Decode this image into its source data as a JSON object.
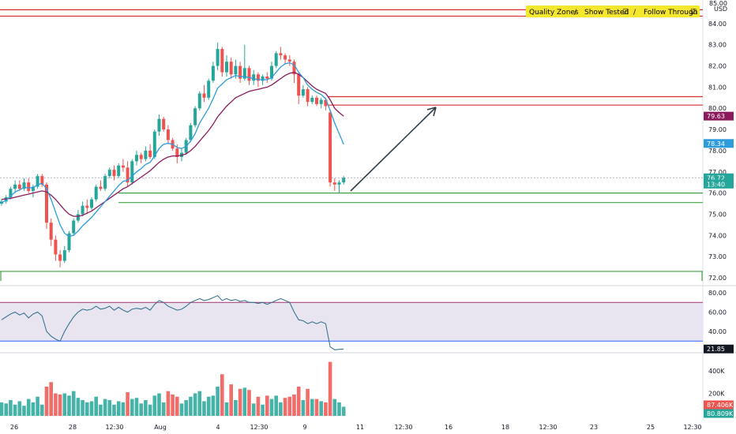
{
  "legend": {
    "quality_zones": "Quality Zones",
    "sep1": "/",
    "show_tested": "Show Tested",
    "sep2": "/",
    "follow_through": "Follow Through",
    "checkmark": "☑",
    "bg_color": "#f5e62e"
  },
  "colors": {
    "up": "#26a69a",
    "down": "#ef5350",
    "ma_fast": "#2e9bdc",
    "ma_slow": "#8b1a5c",
    "resistance": "#d32f2f",
    "support": "#43a047",
    "rsi_line": "#2a6b8a",
    "rsi_band_fill": "#e8e4f0",
    "rsi_upper": "#a0306e",
    "rsi_lower": "#2962ff",
    "arrow": "#2f3f4a"
  },
  "price_axis": {
    "unit": "USD",
    "top_label": "85.00",
    "labels": [
      "84.00",
      "83.00",
      "82.00",
      "81.00",
      "80.00",
      "79.00",
      "78.00",
      "77.00",
      "76.00",
      "75.00",
      "74.00",
      "73.00",
      "72.00"
    ],
    "tags": [
      {
        "text": "79.63",
        "color": "#8b1a5c",
        "value": 79.63
      },
      {
        "text": "78.34",
        "color": "#2e9bdc",
        "value": 78.34
      },
      {
        "text": "76.72",
        "color": "#26a69a",
        "value": 76.72
      },
      {
        "text": "13:40",
        "color": "#26a69a",
        "value": 76.42
      }
    ]
  },
  "rsi_axis": {
    "labels": [
      "80.00",
      "60.00",
      "40.00"
    ],
    "tag": {
      "text": "21.85",
      "color": "#131722",
      "value": 21.85
    }
  },
  "volume_axis": {
    "labels": [
      "400K",
      "200K"
    ],
    "tags": [
      {
        "text": "87.406K",
        "color": "#ef5350",
        "value": 87406
      },
      {
        "text": "80.809K",
        "color": "#26a69a",
        "value": 80809
      }
    ]
  },
  "time_axis": {
    "labels": [
      "26",
      "28",
      "12:30",
      "Aug",
      "4",
      "12:30",
      "9",
      "11",
      "12:30",
      "16",
      "18",
      "12:30",
      "23",
      "25",
      "12:30"
    ]
  },
  "chart_data": {
    "type": "candlestick",
    "price_range": [
      72,
      85
    ],
    "rsi_range": [
      0,
      100
    ],
    "volume_range": [
      0,
      600000
    ],
    "levels": {
      "resistance": [
        84.65,
        84.35,
        80.55,
        80.15
      ],
      "support": [
        76.0,
        75.55,
        72.3
      ],
      "rsi_upper": 70,
      "rsi_lower": 30
    },
    "candles": [
      [
        75.5,
        75.7,
        75.4,
        75.6
      ],
      [
        75.6,
        75.9,
        75.5,
        75.8
      ],
      [
        75.8,
        76.3,
        75.7,
        76.2
      ],
      [
        76.2,
        76.6,
        76.0,
        76.4
      ],
      [
        76.4,
        76.6,
        76.1,
        76.2
      ],
      [
        76.2,
        76.7,
        76.1,
        76.5
      ],
      [
        76.5,
        76.7,
        76.0,
        76.1
      ],
      [
        76.1,
        76.4,
        75.8,
        76.3
      ],
      [
        76.3,
        76.9,
        76.2,
        76.8
      ],
      [
        76.8,
        76.9,
        76.3,
        76.4
      ],
      [
        76.4,
        76.5,
        74.3,
        74.6
      ],
      [
        74.6,
        74.8,
        73.5,
        73.8
      ],
      [
        73.8,
        74.0,
        72.8,
        73.1
      ],
      [
        73.1,
        73.3,
        72.5,
        72.8
      ],
      [
        72.8,
        73.5,
        72.7,
        73.3
      ],
      [
        73.3,
        74.2,
        73.2,
        74.1
      ],
      [
        74.1,
        74.8,
        74.0,
        74.7
      ],
      [
        74.7,
        75.2,
        74.6,
        75.0
      ],
      [
        75.0,
        75.6,
        74.9,
        75.4
      ],
      [
        75.4,
        75.7,
        75.0,
        75.3
      ],
      [
        75.3,
        75.8,
        75.2,
        75.7
      ],
      [
        75.7,
        76.4,
        75.6,
        76.3
      ],
      [
        76.3,
        76.6,
        76.1,
        76.2
      ],
      [
        76.2,
        76.9,
        76.1,
        76.8
      ],
      [
        76.8,
        77.2,
        76.7,
        77.1
      ],
      [
        77.1,
        77.3,
        76.6,
        76.8
      ],
      [
        76.8,
        77.4,
        76.7,
        77.3
      ],
      [
        77.3,
        77.6,
        77.0,
        77.2
      ],
      [
        77.2,
        77.5,
        76.3,
        76.5
      ],
      [
        76.5,
        77.6,
        76.4,
        77.5
      ],
      [
        77.5,
        78.0,
        77.3,
        77.8
      ],
      [
        77.8,
        77.9,
        77.4,
        77.6
      ],
      [
        77.6,
        78.2,
        77.5,
        78.0
      ],
      [
        78.0,
        78.3,
        77.6,
        77.7
      ],
      [
        77.7,
        79.0,
        77.6,
        78.9
      ],
      [
        78.9,
        79.7,
        78.7,
        79.5
      ],
      [
        79.5,
        79.6,
        78.9,
        79.0
      ],
      [
        79.0,
        79.2,
        78.3,
        78.5
      ],
      [
        78.5,
        78.6,
        78.0,
        78.1
      ],
      [
        78.1,
        78.3,
        77.4,
        77.7
      ],
      [
        77.7,
        78.1,
        77.5,
        77.9
      ],
      [
        77.9,
        78.6,
        77.8,
        78.5
      ],
      [
        78.5,
        79.3,
        78.4,
        79.2
      ],
      [
        79.2,
        80.1,
        79.1,
        80.0
      ],
      [
        80.0,
        80.8,
        79.9,
        80.7
      ],
      [
        80.7,
        81.1,
        80.3,
        80.5
      ],
      [
        80.5,
        81.4,
        80.4,
        81.3
      ],
      [
        81.3,
        82.2,
        81.2,
        82.0
      ],
      [
        82.0,
        83.1,
        81.8,
        82.8
      ],
      [
        82.8,
        82.9,
        81.5,
        81.7
      ],
      [
        81.7,
        82.5,
        81.5,
        82.2
      ],
      [
        82.2,
        82.4,
        81.4,
        81.6
      ],
      [
        81.6,
        82.3,
        81.4,
        82.0
      ],
      [
        82.0,
        82.2,
        81.2,
        81.4
      ],
      [
        81.4,
        83.0,
        81.3,
        81.9
      ],
      [
        81.9,
        82.0,
        81.1,
        81.3
      ],
      [
        81.3,
        81.8,
        81.1,
        81.6
      ],
      [
        81.6,
        81.7,
        81.0,
        81.3
      ],
      [
        81.3,
        81.6,
        81.1,
        81.5
      ],
      [
        81.5,
        81.7,
        81.2,
        81.4
      ],
      [
        81.4,
        82.2,
        81.3,
        82.0
      ],
      [
        82.0,
        82.7,
        81.9,
        82.6
      ],
      [
        82.6,
        82.9,
        82.3,
        82.5
      ],
      [
        82.5,
        82.6,
        82.1,
        82.3
      ],
      [
        82.3,
        82.5,
        82.0,
        82.2
      ],
      [
        82.2,
        82.3,
        81.2,
        81.6
      ],
      [
        81.6,
        81.7,
        80.2,
        80.6
      ],
      [
        80.6,
        81.1,
        80.5,
        80.9
      ],
      [
        80.9,
        81.0,
        80.1,
        80.3
      ],
      [
        80.3,
        80.6,
        80.2,
        80.5
      ],
      [
        80.5,
        80.6,
        80.1,
        80.2
      ],
      [
        80.2,
        80.5,
        80.0,
        80.4
      ],
      [
        80.4,
        80.5,
        79.9,
        80.1
      ],
      [
        79.8,
        79.9,
        76.3,
        76.5
      ],
      [
        76.5,
        76.7,
        76.1,
        76.4
      ],
      [
        76.4,
        76.6,
        76.0,
        76.5
      ],
      [
        76.5,
        76.8,
        76.4,
        76.72
      ]
    ],
    "ma_fast": [
      75.55,
      75.65,
      75.85,
      76.05,
      76.15,
      76.25,
      76.25,
      76.25,
      76.4,
      76.45,
      76.2,
      75.7,
      75.1,
      74.5,
      74.1,
      73.95,
      74.0,
      74.2,
      74.45,
      74.65,
      74.85,
      75.1,
      75.35,
      75.6,
      75.85,
      76.1,
      76.35,
      76.55,
      76.6,
      76.8,
      77.0,
      77.15,
      77.35,
      77.45,
      77.75,
      78.1,
      78.3,
      78.35,
      78.3,
      78.15,
      78.1,
      78.2,
      78.45,
      78.8,
      79.3,
      79.65,
      80.0,
      80.45,
      80.95,
      81.15,
      81.35,
      81.45,
      81.55,
      81.5,
      81.5,
      81.45,
      81.4,
      81.35,
      81.35,
      81.35,
      81.45,
      81.7,
      81.95,
      82.1,
      82.15,
      82.05,
      81.7,
      81.45,
      81.1,
      80.9,
      80.75,
      80.65,
      80.45,
      79.9,
      79.3,
      78.8,
      78.3
    ],
    "ma_slow": [
      75.7,
      75.72,
      75.75,
      75.8,
      75.85,
      75.9,
      75.95,
      76.0,
      76.05,
      76.1,
      76.05,
      75.9,
      75.7,
      75.45,
      75.2,
      75.0,
      74.9,
      74.9,
      74.95,
      75.05,
      75.15,
      75.3,
      75.45,
      75.6,
      75.75,
      75.9,
      76.05,
      76.2,
      76.3,
      76.45,
      76.6,
      76.75,
      76.9,
      77.05,
      77.25,
      77.45,
      77.6,
      77.7,
      77.75,
      77.75,
      77.78,
      77.85,
      78.0,
      78.2,
      78.45,
      78.7,
      78.95,
      79.25,
      79.6,
      79.85,
      80.1,
      80.3,
      80.5,
      80.6,
      80.7,
      80.8,
      80.85,
      80.9,
      80.95,
      81.0,
      81.1,
      81.25,
      81.4,
      81.55,
      81.65,
      81.7,
      81.6,
      81.45,
      81.25,
      81.05,
      80.9,
      80.8,
      80.7,
      80.4,
      80.0,
      79.8,
      79.63
    ],
    "rsi": [
      52,
      55,
      58,
      60,
      57,
      59,
      54,
      58,
      60,
      56,
      40,
      35,
      32,
      30,
      40,
      48,
      55,
      60,
      63,
      62,
      63,
      66,
      63,
      64,
      66,
      62,
      65,
      62,
      60,
      63,
      64,
      63,
      65,
      62,
      68,
      72,
      70,
      66,
      64,
      62,
      63,
      66,
      70,
      72,
      74,
      72,
      73,
      75,
      77,
      72,
      74,
      72,
      73,
      71,
      72,
      70,
      70,
      69,
      70,
      68,
      70,
      72,
      74,
      72,
      70,
      60,
      52,
      51,
      48,
      50,
      48,
      50,
      48,
      24,
      21,
      21.5,
      21.85
    ],
    "volume_up": [
      120,
      110,
      140,
      100,
      130,
      90,
      150,
      120,
      170,
      100,
      0,
      0,
      0,
      0,
      200,
      180,
      220,
      160,
      140,
      120,
      130,
      170,
      100,
      150,
      140,
      100,
      130,
      120,
      0,
      150,
      160,
      110,
      140,
      100,
      180,
      200,
      120,
      0,
      0,
      0,
      110,
      140,
      170,
      200,
      220,
      130,
      170,
      180,
      260,
      0,
      120,
      0,
      140,
      0,
      250,
      0,
      110,
      0,
      100,
      0,
      150,
      180,
      120,
      0,
      0,
      0,
      0,
      140,
      0,
      150,
      0,
      130,
      0,
      0,
      150,
      120,
      81
    ],
    "volume_down": [
      0,
      0,
      0,
      0,
      0,
      0,
      0,
      0,
      0,
      0,
      260,
      300,
      200,
      190,
      0,
      0,
      0,
      0,
      0,
      0,
      0,
      0,
      0,
      0,
      0,
      180,
      0,
      0,
      210,
      0,
      0,
      0,
      0,
      160,
      0,
      0,
      0,
      220,
      190,
      170,
      0,
      0,
      0,
      0,
      0,
      0,
      0,
      0,
      0,
      370,
      0,
      280,
      0,
      240,
      0,
      230,
      0,
      170,
      0,
      180,
      0,
      0,
      0,
      160,
      170,
      190,
      260,
      0,
      240,
      0,
      150,
      0,
      120,
      480,
      0,
      0,
      87
    ]
  }
}
